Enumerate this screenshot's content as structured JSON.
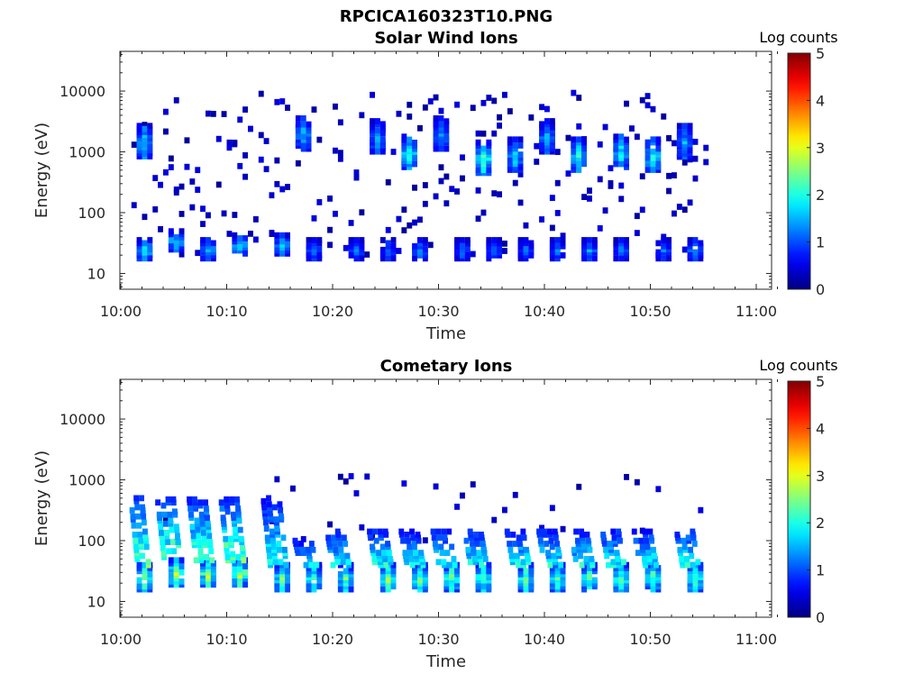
{
  "figure": {
    "title": "RPCICA160323T10.PNG"
  },
  "chart_data": [
    {
      "type": "heatmap",
      "title": "Solar Wind Ions",
      "xlabel": "Time",
      "ylabel": "Energy (eV)",
      "xlim": [
        "10:00",
        "11:02"
      ],
      "ylim": [
        5.5,
        45000
      ],
      "yscale": "log",
      "x_ticks": [
        "10:00",
        "10:10",
        "10:20",
        "10:30",
        "10:40",
        "10:50",
        "11:00"
      ],
      "y_ticks": [
        "10",
        "100",
        "1000",
        "10000"
      ],
      "colorbar": {
        "label": "Log counts",
        "range": [
          0,
          5
        ],
        "ticks": [
          "0",
          "1",
          "2",
          "3",
          "4",
          "5"
        ],
        "colormap": "jet"
      },
      "grid": false,
      "data_time_range": [
        "10:01",
        "10:55"
      ],
      "low_energy_bursts": [
        {
          "time": "10:02",
          "energy_eV": 25,
          "log_counts": 2.0
        },
        {
          "time": "10:05",
          "energy_eV": 35,
          "log_counts": 1.8
        },
        {
          "time": "10:08",
          "energy_eV": 25,
          "log_counts": 1.6
        },
        {
          "time": "10:11",
          "energy_eV": 30,
          "log_counts": 1.8
        },
        {
          "time": "10:15",
          "energy_eV": 30,
          "log_counts": 1.7
        },
        {
          "time": "10:18",
          "energy_eV": 25,
          "log_counts": 1.2
        },
        {
          "time": "10:22",
          "energy_eV": 25,
          "log_counts": 1.2
        },
        {
          "time": "10:25",
          "energy_eV": 25,
          "log_counts": 1.2
        },
        {
          "time": "10:28",
          "energy_eV": 25,
          "log_counts": 1.3
        },
        {
          "time": "10:32",
          "energy_eV": 25,
          "log_counts": 1.2
        },
        {
          "time": "10:35",
          "energy_eV": 25,
          "log_counts": 1.2
        },
        {
          "time": "10:38",
          "energy_eV": 25,
          "log_counts": 1.2
        },
        {
          "time": "10:41",
          "energy_eV": 25,
          "log_counts": 1.2
        },
        {
          "time": "10:44",
          "energy_eV": 25,
          "log_counts": 1.4
        },
        {
          "time": "10:47",
          "energy_eV": 25,
          "log_counts": 1.3
        },
        {
          "time": "10:51",
          "energy_eV": 25,
          "log_counts": 1.2
        },
        {
          "time": "10:54",
          "energy_eV": 25,
          "log_counts": 1.4
        }
      ],
      "solar_wind_bursts": [
        {
          "time": "10:02",
          "energy_eV": 1500,
          "log_counts": 1.8
        },
        {
          "time": "10:17",
          "energy_eV": 2000,
          "log_counts": 1.6
        },
        {
          "time": "10:24",
          "energy_eV": 1800,
          "log_counts": 1.5
        },
        {
          "time": "10:27",
          "energy_eV": 1000,
          "log_counts": 2.0
        },
        {
          "time": "10:30",
          "energy_eV": 2000,
          "log_counts": 1.5
        },
        {
          "time": "10:34",
          "energy_eV": 800,
          "log_counts": 2.3
        },
        {
          "time": "10:37",
          "energy_eV": 900,
          "log_counts": 1.7
        },
        {
          "time": "10:40",
          "energy_eV": 1800,
          "log_counts": 1.5
        },
        {
          "time": "10:43",
          "energy_eV": 900,
          "log_counts": 2.0
        },
        {
          "time": "10:47",
          "energy_eV": 1000,
          "log_counts": 2.0
        },
        {
          "time": "10:50",
          "energy_eV": 900,
          "log_counts": 2.1
        },
        {
          "time": "10:53",
          "energy_eV": 1500,
          "log_counts": 1.5
        }
      ]
    },
    {
      "type": "heatmap",
      "title": "Cometary Ions",
      "xlabel": "Time",
      "ylabel": "Energy (eV)",
      "xlim": [
        "10:00",
        "11:02"
      ],
      "ylim": [
        5.5,
        45000
      ],
      "yscale": "log",
      "x_ticks": [
        "10:00",
        "10:10",
        "10:20",
        "10:30",
        "10:40",
        "10:50",
        "11:00"
      ],
      "y_ticks": [
        "10",
        "100",
        "1000",
        "10000"
      ],
      "colorbar": {
        "label": "Log counts",
        "range": [
          0,
          5
        ],
        "ticks": [
          "0",
          "1",
          "2",
          "3",
          "4",
          "5"
        ],
        "colormap": "jet"
      },
      "grid": false,
      "data_time_range": [
        "10:01",
        "10:55"
      ],
      "bursts": [
        {
          "time": "10:02",
          "energy_eV": 25,
          "log_counts": 2.9,
          "top_eV": 500
        },
        {
          "time": "10:05",
          "energy_eV": 30,
          "log_counts": 2.9,
          "top_eV": 500
        },
        {
          "time": "10:08",
          "energy_eV": 30,
          "log_counts": 2.8,
          "top_eV": 500
        },
        {
          "time": "10:11",
          "energy_eV": 30,
          "log_counts": 2.9,
          "top_eV": 500
        },
        {
          "time": "10:15",
          "energy_eV": 25,
          "log_counts": 2.4,
          "top_eV": 500
        },
        {
          "time": "10:18",
          "energy_eV": 25,
          "log_counts": 2.3,
          "top_eV": 100
        },
        {
          "time": "10:21",
          "energy_eV": 25,
          "log_counts": 2.4,
          "top_eV": 150
        },
        {
          "time": "10:25",
          "energy_eV": 25,
          "log_counts": 2.6,
          "top_eV": 150
        },
        {
          "time": "10:28",
          "energy_eV": 25,
          "log_counts": 2.5,
          "top_eV": 150
        },
        {
          "time": "10:31",
          "energy_eV": 25,
          "log_counts": 2.5,
          "top_eV": 150
        },
        {
          "time": "10:34",
          "energy_eV": 25,
          "log_counts": 2.5,
          "top_eV": 150
        },
        {
          "time": "10:38",
          "energy_eV": 25,
          "log_counts": 2.5,
          "top_eV": 150
        },
        {
          "time": "10:41",
          "energy_eV": 25,
          "log_counts": 2.5,
          "top_eV": 150
        },
        {
          "time": "10:44",
          "energy_eV": 25,
          "log_counts": 2.5,
          "top_eV": 150
        },
        {
          "time": "10:47",
          "energy_eV": 25,
          "log_counts": 2.6,
          "top_eV": 150
        },
        {
          "time": "10:50",
          "energy_eV": 25,
          "log_counts": 2.4,
          "top_eV": 150
        },
        {
          "time": "10:54",
          "energy_eV": 25,
          "log_counts": 2.6,
          "top_eV": 150
        }
      ]
    }
  ]
}
